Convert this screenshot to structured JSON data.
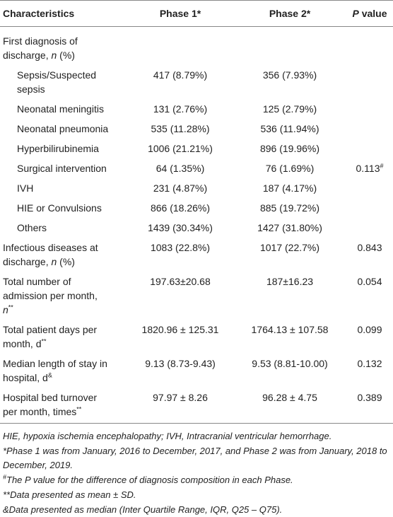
{
  "table": {
    "header": {
      "characteristics": "Characteristics",
      "phase1": "Phase 1*",
      "phase2": "Phase 2*",
      "p": [
        "P",
        " value"
      ]
    },
    "rows": [
      {
        "label": [
          "First diagnosis of",
          "discharge, ",
          "n",
          " (%)"
        ]
      },
      {
        "label": [
          "Sepsis/Suspected",
          "sepsis"
        ],
        "phase1": "417 (8.79%)",
        "phase2": "356 (7.93%)"
      },
      {
        "label": [
          "Neonatal meningitis"
        ],
        "phase1": "131 (2.76%)",
        "phase2": "125 (2.79%)"
      },
      {
        "label": [
          "Neonatal pneumonia"
        ],
        "phase1": "535 (11.28%)",
        "phase2": "536 (11.94%)"
      },
      {
        "label": [
          "Hyperbilirubinemia"
        ],
        "phase1": "1006 (21.21%)",
        "phase2": "896 (19.96%)"
      },
      {
        "label": [
          "Surgical intervention"
        ],
        "phase1": "64 (1.35%)",
        "phase2": "76 (1.69%)",
        "p": [
          "0.113",
          "#"
        ]
      },
      {
        "label": [
          "IVH"
        ],
        "phase1": "231 (4.87%)",
        "phase2": "187 (4.17%)"
      },
      {
        "label": [
          "HIE or Convulsions"
        ],
        "phase1": "866 (18.26%)",
        "phase2": "885 (19.72%)"
      },
      {
        "label": [
          "Others"
        ],
        "phase1": "1439 (30.34%)",
        "phase2": "1427 (31.80%)"
      },
      {
        "label": [
          "Infectious diseases at",
          "discharge, ",
          "n",
          " (%)"
        ],
        "phase1": "1083 (22.8%)",
        "phase2": "1017 (22.7%)",
        "p": [
          "0.843"
        ]
      },
      {
        "label": [
          "Total number of",
          "admission per month,",
          "n",
          "**"
        ],
        "phase1": "197.63±20.68",
        "phase2": "187±16.23",
        "p": [
          "0.054"
        ]
      },
      {
        "label": [
          "Total patient days per",
          "month, d",
          "**"
        ],
        "phase1": "1820.96 ± 125.31",
        "phase2": "1764.13 ± 107.58",
        "p": [
          "0.099"
        ]
      },
      {
        "label": [
          "Median length of stay in",
          "hospital, d",
          "&"
        ],
        "phase1": "9.13 (8.73-9.43)",
        "phase2": "9.53 (8.81-10.00)",
        "p": [
          "0.132"
        ]
      },
      {
        "label": [
          "Hospital bed turnover",
          "per month, times",
          "**"
        ],
        "phase1": "97.97 ± 8.26",
        "phase2": "96.28 ± 4.75",
        "p": [
          "0.389"
        ]
      }
    ],
    "notes": [
      [
        "HIE, hypoxia ischemia encephalopathy; IVH, Intracranial ventricular hemorrhage."
      ],
      [
        "*Phase 1 was from January, 2016 to December, 2017, and Phase 2 was from January, 2018 to December, 2019."
      ],
      [
        "#",
        "The P value for the difference of diagnosis composition in each Phase."
      ],
      [
        "**Data presented as mean ± SD."
      ],
      [
        "&Data presented as median (Inter Quartile Range, IQR, Q25 – Q75)."
      ]
    ]
  }
}
